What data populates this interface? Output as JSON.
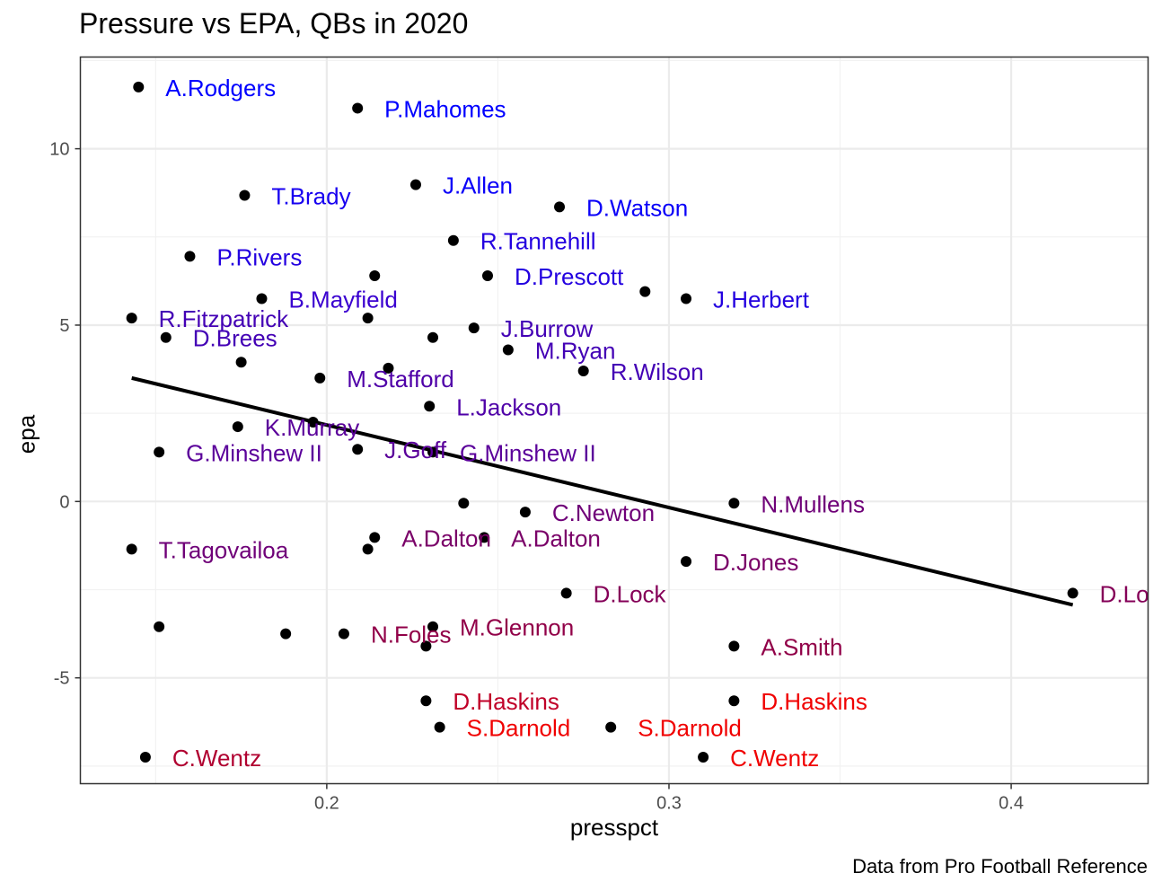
{
  "chart_data": {
    "type": "scatter",
    "title": "Pressure vs EPA, QBs in 2020",
    "caption": "Data from Pro Football Reference",
    "xlabel": "presspct",
    "ylabel": "epa",
    "xlim": [
      0.128,
      0.44
    ],
    "ylim": [
      -8.0,
      12.6
    ],
    "x_ticks": [
      0.2,
      0.3,
      0.4
    ],
    "x_tick_labels": [
      "0.2",
      "0.3",
      "0.4"
    ],
    "y_ticks": [
      -5,
      0,
      5,
      10
    ],
    "y_tick_labels": [
      "-5",
      "0",
      "5",
      "10"
    ],
    "grid": true,
    "theme": "bw",
    "trend_line": {
      "x": [
        0.143,
        0.418
      ],
      "y": [
        3.5,
        -2.93
      ],
      "color": "#000000"
    },
    "points": [
      {
        "x": 0.145,
        "y": 11.75,
        "label": "A.Rodgers",
        "color": "#0000ff"
      },
      {
        "x": 0.209,
        "y": 11.15,
        "label": "P.Mahomes",
        "color": "#0000ff"
      },
      {
        "x": 0.176,
        "y": 8.68,
        "label": "T.Brady",
        "color": "#1800f0"
      },
      {
        "x": 0.226,
        "y": 8.98,
        "label": "J.Allen",
        "color": "#0a00f8"
      },
      {
        "x": 0.268,
        "y": 8.35,
        "label": "D.Watson",
        "color": "#0a00f8"
      },
      {
        "x": 0.237,
        "y": 7.4,
        "label": "R.Tannehill",
        "color": "#2300e0"
      },
      {
        "x": 0.16,
        "y": 6.95,
        "label": "P.Rivers",
        "color": "#2300e0"
      },
      {
        "x": 0.214,
        "y": 6.4,
        "label": "",
        "color": ""
      },
      {
        "x": 0.247,
        "y": 6.4,
        "label": "D.Prescott",
        "color": "#2300e0"
      },
      {
        "x": 0.293,
        "y": 5.95,
        "label": "",
        "color": ""
      },
      {
        "x": 0.305,
        "y": 5.75,
        "label": "J.Herbert",
        "color": "#2300e0"
      },
      {
        "x": 0.181,
        "y": 5.75,
        "label": "B.Mayfield",
        "color": "#3a00d0"
      },
      {
        "x": 0.212,
        "y": 5.2,
        "label": "",
        "color": ""
      },
      {
        "x": 0.143,
        "y": 5.2,
        "label": "R.Fitzpatrick",
        "color": "#4300b5"
      },
      {
        "x": 0.153,
        "y": 4.65,
        "label": "D.Brees",
        "color": "#4300b5"
      },
      {
        "x": 0.243,
        "y": 4.92,
        "label": "J.Burrow",
        "color": "#4300b5"
      },
      {
        "x": 0.231,
        "y": 4.65,
        "label": "",
        "color": ""
      },
      {
        "x": 0.253,
        "y": 4.3,
        "label": "M.Ryan",
        "color": "#4300b5"
      },
      {
        "x": 0.175,
        "y": 3.95,
        "label": "",
        "color": ""
      },
      {
        "x": 0.218,
        "y": 3.78,
        "label": "",
        "color": ""
      },
      {
        "x": 0.275,
        "y": 3.7,
        "label": "R.Wilson",
        "color": "#4300b5"
      },
      {
        "x": 0.198,
        "y": 3.5,
        "label": "M.Stafford",
        "color": "#4f00a8"
      },
      {
        "x": 0.23,
        "y": 2.7,
        "label": "L.Jackson",
        "color": "#4f00a8"
      },
      {
        "x": 0.174,
        "y": 2.12,
        "label": "K.Murray",
        "color": "#5a009a"
      },
      {
        "x": 0.196,
        "y": 2.25,
        "label": "",
        "color": ""
      },
      {
        "x": 0.151,
        "y": 1.4,
        "label": "G.Minshew II",
        "color": "#5a009a"
      },
      {
        "x": 0.209,
        "y": 1.48,
        "label": "J.Goff",
        "color": "#5a009a"
      },
      {
        "x": 0.231,
        "y": 1.4,
        "label": "G.Minshew II",
        "color": "#5a009a"
      },
      {
        "x": 0.24,
        "y": -0.05,
        "label": "",
        "color": ""
      },
      {
        "x": 0.258,
        "y": -0.3,
        "label": "C.Newton",
        "color": "#6f0078"
      },
      {
        "x": 0.319,
        "y": -0.05,
        "label": "N.Mullens",
        "color": "#6f0078"
      },
      {
        "x": 0.143,
        "y": -1.35,
        "label": "T.Tagovailoa",
        "color": "#6f0078"
      },
      {
        "x": 0.214,
        "y": -1.02,
        "label": "A.Dalton",
        "color": "#7a0068"
      },
      {
        "x": 0.212,
        "y": -1.35,
        "label": "",
        "color": ""
      },
      {
        "x": 0.246,
        "y": -1.02,
        "label": "A.Dalton",
        "color": "#7a0068"
      },
      {
        "x": 0.305,
        "y": -1.7,
        "label": "D.Jones",
        "color": "#7a0068"
      },
      {
        "x": 0.27,
        "y": -2.6,
        "label": "D.Lock",
        "color": "#850058"
      },
      {
        "x": 0.418,
        "y": -2.6,
        "label": "D.Lock",
        "color": "#850058"
      },
      {
        "x": 0.151,
        "y": -3.55,
        "label": "",
        "color": ""
      },
      {
        "x": 0.188,
        "y": -3.75,
        "label": "",
        "color": ""
      },
      {
        "x": 0.205,
        "y": -3.75,
        "label": "N.Foles",
        "color": "#910048"
      },
      {
        "x": 0.231,
        "y": -3.55,
        "label": "M.Glennon",
        "color": "#910048"
      },
      {
        "x": 0.229,
        "y": -4.1,
        "label": "",
        "color": ""
      },
      {
        "x": 0.319,
        "y": -4.1,
        "label": "A.Smith",
        "color": "#910048"
      },
      {
        "x": 0.229,
        "y": -5.65,
        "label": "D.Haskins",
        "color": "#c00028"
      },
      {
        "x": 0.319,
        "y": -5.65,
        "label": "D.Haskins",
        "color": "#f00000"
      },
      {
        "x": 0.233,
        "y": -6.4,
        "label": "S.Darnold",
        "color": "#f00000"
      },
      {
        "x": 0.283,
        "y": -6.4,
        "label": "S.Darnold",
        "color": "#f00000"
      },
      {
        "x": 0.147,
        "y": -7.25,
        "label": "C.Wentz",
        "color": "#b00030"
      },
      {
        "x": 0.31,
        "y": -7.25,
        "label": "C.Wentz",
        "color": "#f00000"
      }
    ]
  }
}
